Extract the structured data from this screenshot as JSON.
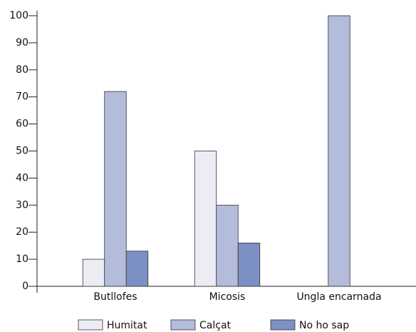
{
  "chart_data": {
    "type": "bar",
    "categories": [
      "Butllofes",
      "Micosis",
      "Ungla encarnada"
    ],
    "series": [
      {
        "name": "Humitat",
        "color": "#ececf4",
        "values": [
          10,
          50,
          0
        ]
      },
      {
        "name": "Calçat",
        "color": "#b4bcdc",
        "values": [
          72,
          30,
          100
        ]
      },
      {
        "name": "No ho sap",
        "color": "#7c90c4",
        "values": [
          13,
          16,
          0
        ]
      }
    ],
    "ylim": [
      0,
      100
    ],
    "yticks": [
      0,
      10,
      20,
      30,
      40,
      50,
      60,
      70,
      80,
      90,
      100
    ]
  }
}
